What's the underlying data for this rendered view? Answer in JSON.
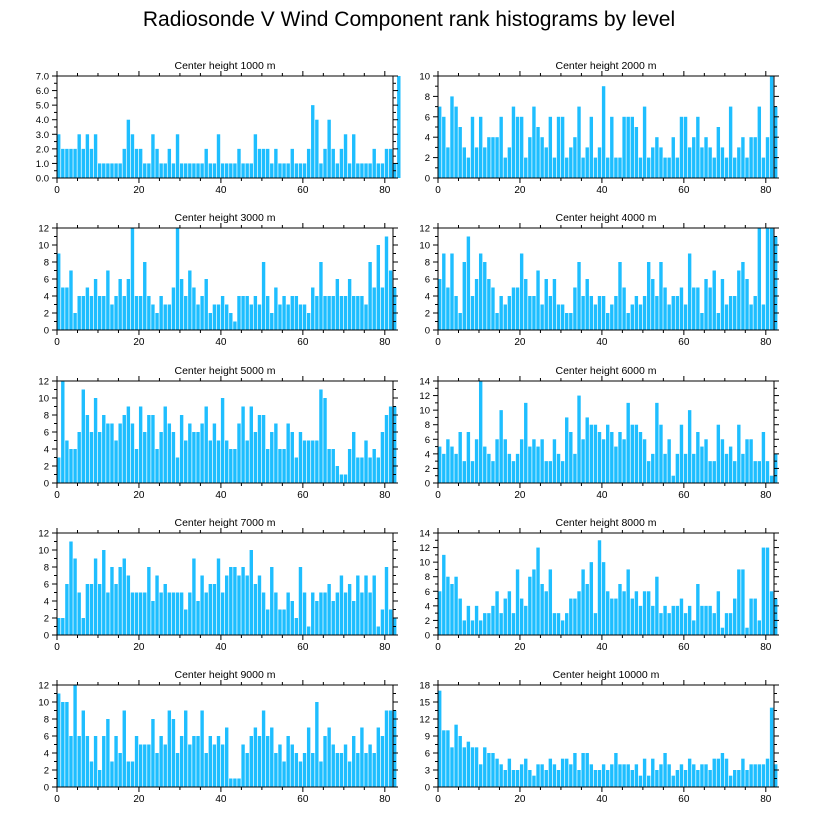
{
  "figure_title": "Radiosonde V Wind Component rank histograms by level",
  "colors": {
    "bar": "#1ebeff",
    "axis": "#000000"
  },
  "chart_data": [
    {
      "type": "bar",
      "title": "Center height 1000 m",
      "xlim": [
        0,
        82
      ],
      "ylim": [
        0,
        7
      ],
      "yticks": [
        0,
        1,
        2,
        3,
        4,
        5,
        6,
        7
      ],
      "ytick_labels": [
        "0.0",
        "1.0",
        "2.0",
        "3.0",
        "4.0",
        "5.0",
        "6.0",
        "7.0"
      ],
      "xticks": [
        0,
        20,
        40,
        60,
        80
      ],
      "xtick_labels": [
        "0",
        "20",
        "40",
        "60",
        "80"
      ],
      "values": [
        3,
        2,
        2,
        2,
        2,
        3,
        2,
        3,
        2,
        3,
        1,
        1,
        1,
        1,
        1,
        1,
        2,
        4,
        3,
        2,
        2,
        1,
        1,
        3,
        2,
        1,
        1,
        2,
        1,
        3,
        1,
        1,
        1,
        1,
        1,
        1,
        2,
        1,
        1,
        3,
        1,
        1,
        1,
        1,
        2,
        1,
        1,
        1,
        3,
        2,
        2,
        2,
        1,
        2,
        1,
        1,
        1,
        2,
        1,
        1,
        1,
        2,
        5,
        4,
        1,
        2,
        4,
        2,
        1,
        2,
        3,
        1,
        3,
        1,
        1,
        1,
        1,
        2,
        1,
        1,
        2,
        2,
        1,
        7
      ]
    },
    {
      "type": "bar",
      "title": "Center height 2000 m",
      "xlim": [
        0,
        82
      ],
      "ylim": [
        0,
        10
      ],
      "yticks": [
        0,
        2,
        4,
        6,
        8,
        10
      ],
      "ytick_labels": [
        "0",
        "2",
        "4",
        "6",
        "8",
        "10"
      ],
      "xticks": [
        0,
        20,
        40,
        60,
        80
      ],
      "xtick_labels": [
        "0",
        "20",
        "40",
        "60",
        "80"
      ],
      "values": [
        7,
        6,
        3,
        8,
        7,
        5,
        3,
        2,
        6,
        3,
        6,
        3,
        4,
        4,
        4,
        6,
        2,
        3,
        7,
        6,
        6,
        2,
        4,
        7,
        5,
        4,
        3,
        6,
        2,
        6,
        6,
        2,
        3,
        4,
        7,
        2,
        3,
        6,
        2,
        3,
        9,
        2,
        6,
        2,
        2,
        6,
        6,
        6,
        5,
        2,
        7,
        2,
        3,
        4,
        3,
        2,
        2,
        4,
        2,
        6,
        6,
        3,
        4,
        6,
        3,
        4,
        3,
        2,
        5,
        3,
        2,
        7,
        2,
        3,
        4,
        2,
        4,
        4,
        7,
        2,
        4,
        10,
        7
      ]
    },
    {
      "type": "bar",
      "title": "Center height 3000 m",
      "xlim": [
        0,
        82
      ],
      "ylim": [
        0,
        12
      ],
      "yticks": [
        0,
        2,
        4,
        6,
        8,
        10,
        12
      ],
      "ytick_labels": [
        "0",
        "2",
        "4",
        "6",
        "8",
        "10",
        "12"
      ],
      "xticks": [
        0,
        20,
        40,
        60,
        80
      ],
      "xtick_labels": [
        "0",
        "20",
        "40",
        "60",
        "80"
      ],
      "values": [
        9,
        5,
        5,
        7,
        2,
        4,
        4,
        5,
        4,
        6,
        4,
        4,
        7,
        3,
        4,
        6,
        4,
        6,
        12,
        4,
        4,
        8,
        4,
        3,
        2,
        4,
        3,
        3,
        5,
        12,
        6,
        4,
        7,
        5,
        3,
        4,
        6,
        2,
        3,
        3,
        4,
        3,
        2,
        1,
        4,
        4,
        4,
        3,
        4,
        3,
        8,
        4,
        2,
        5,
        3,
        4,
        3,
        4,
        4,
        3,
        3,
        2,
        5,
        4,
        8,
        4,
        4,
        4,
        6,
        4,
        4,
        6,
        4,
        4,
        4,
        3,
        8,
        5,
        10,
        5,
        11,
        7,
        5
      ]
    },
    {
      "type": "bar",
      "title": "Center height 4000 m",
      "xlim": [
        0,
        82
      ],
      "ylim": [
        0,
        12
      ],
      "yticks": [
        0,
        2,
        4,
        6,
        8,
        10,
        12
      ],
      "ytick_labels": [
        "0",
        "2",
        "4",
        "6",
        "8",
        "10",
        "12"
      ],
      "xticks": [
        0,
        20,
        40,
        60,
        80
      ],
      "xtick_labels": [
        "0",
        "20",
        "40",
        "60",
        "80"
      ],
      "values": [
        6,
        9,
        5,
        9,
        4,
        2,
        8,
        11,
        4,
        6,
        9,
        8,
        6,
        5,
        2,
        4,
        3,
        4,
        5,
        5,
        9,
        6,
        4,
        4,
        7,
        3,
        6,
        4,
        6,
        3,
        3,
        2,
        2,
        5,
        8,
        4,
        6,
        4,
        3,
        4,
        4,
        2,
        3,
        4,
        8,
        5,
        2,
        3,
        4,
        3,
        4,
        8,
        6,
        4,
        8,
        5,
        3,
        4,
        4,
        5,
        3,
        9,
        5,
        5,
        2,
        6,
        5,
        7,
        2,
        6,
        3,
        4,
        4,
        7,
        8,
        6,
        3,
        4,
        12,
        3,
        12,
        12,
        11
      ]
    },
    {
      "type": "bar",
      "title": "Center height 5000 m",
      "xlim": [
        0,
        82
      ],
      "ylim": [
        0,
        12
      ],
      "yticks": [
        0,
        2,
        4,
        6,
        8,
        10,
        12
      ],
      "ytick_labels": [
        "0",
        "2",
        "4",
        "6",
        "8",
        "10",
        "12"
      ],
      "xticks": [
        0,
        20,
        40,
        60,
        80
      ],
      "xtick_labels": [
        "0",
        "20",
        "40",
        "60",
        "80"
      ],
      "values": [
        3,
        12,
        5,
        4,
        4,
        6,
        11,
        8,
        6,
        10,
        6,
        8,
        7,
        7,
        5,
        7,
        8,
        9,
        7,
        4,
        9,
        6,
        8,
        8,
        4,
        6,
        9,
        7,
        6,
        3,
        8,
        5,
        7,
        6,
        6,
        7,
        9,
        5,
        7,
        5,
        10,
        5,
        4,
        4,
        7,
        9,
        5,
        9,
        6,
        8,
        8,
        4,
        6,
        7,
        4,
        4,
        7,
        6,
        3,
        6,
        5,
        5,
        5,
        5,
        11,
        10,
        4,
        4,
        2,
        1,
        1,
        4,
        6,
        3,
        3,
        5,
        3,
        4,
        3,
        6,
        8,
        9,
        9
      ]
    },
    {
      "type": "bar",
      "title": "Center height 6000 m",
      "xlim": [
        0,
        82
      ],
      "ylim": [
        0,
        14
      ],
      "yticks": [
        0,
        2,
        4,
        6,
        8,
        10,
        12,
        14
      ],
      "ytick_labels": [
        "0",
        "2",
        "4",
        "6",
        "8",
        "10",
        "12",
        "14"
      ],
      "xticks": [
        0,
        20,
        40,
        60,
        80
      ],
      "xtick_labels": [
        "0",
        "20",
        "40",
        "60",
        "80"
      ],
      "values": [
        5,
        4,
        6,
        5,
        4,
        7,
        3,
        7,
        3,
        6,
        14,
        5,
        4,
        3,
        6,
        10,
        6,
        4,
        3,
        4,
        6,
        11,
        5,
        6,
        5,
        6,
        3,
        3,
        6,
        4,
        3,
        9,
        7,
        4,
        12,
        6,
        9,
        8,
        8,
        7,
        6,
        8,
        7,
        5,
        7,
        6,
        11,
        8,
        8,
        7,
        6,
        3,
        4,
        11,
        8,
        4,
        6,
        1,
        4,
        8,
        4,
        10,
        4,
        7,
        5,
        6,
        3,
        3,
        8,
        6,
        4,
        5,
        3,
        8,
        4,
        6,
        6,
        3,
        3,
        7,
        3,
        1,
        4
      ]
    },
    {
      "type": "bar",
      "title": "Center height 7000 m",
      "xlim": [
        0,
        82
      ],
      "ylim": [
        0,
        12
      ],
      "yticks": [
        0,
        2,
        4,
        6,
        8,
        10,
        12
      ],
      "ytick_labels": [
        "0",
        "2",
        "4",
        "6",
        "8",
        "10",
        "12"
      ],
      "xticks": [
        0,
        20,
        40,
        60,
        80
      ],
      "xtick_labels": [
        "0",
        "20",
        "40",
        "60",
        "80"
      ],
      "values": [
        2,
        2,
        6,
        11,
        9,
        5,
        2,
        6,
        6,
        9,
        6,
        10,
        5,
        8,
        6,
        8,
        9,
        7,
        5,
        5,
        5,
        5,
        8,
        4,
        7,
        5,
        6,
        5,
        5,
        5,
        5,
        3,
        5,
        9,
        4,
        7,
        5,
        6,
        6,
        9,
        5,
        7,
        8,
        8,
        7,
        8,
        7,
        10,
        6,
        7,
        5,
        3,
        8,
        5,
        3,
        3,
        5,
        4,
        2,
        8,
        5,
        1,
        5,
        4,
        5,
        5,
        6,
        4,
        5,
        7,
        5,
        6,
        4,
        7,
        5,
        7,
        5,
        7,
        1,
        3,
        8,
        3,
        2
      ]
    },
    {
      "type": "bar",
      "title": "Center height 8000 m",
      "xlim": [
        0,
        82
      ],
      "ylim": [
        0,
        14
      ],
      "yticks": [
        0,
        2,
        4,
        6,
        8,
        10,
        12,
        14
      ],
      "ytick_labels": [
        "0",
        "2",
        "4",
        "6",
        "8",
        "10",
        "12",
        "14"
      ],
      "xticks": [
        0,
        20,
        40,
        60,
        80
      ],
      "xtick_labels": [
        "0",
        "20",
        "40",
        "60",
        "80"
      ],
      "values": [
        6,
        11,
        8,
        7,
        8,
        5,
        2,
        4,
        2,
        4,
        2,
        3,
        3,
        4,
        6,
        3,
        5,
        6,
        3,
        9,
        5,
        4,
        8,
        9,
        12,
        7,
        6,
        9,
        3,
        3,
        2,
        3,
        5,
        5,
        6,
        9,
        7,
        10,
        3,
        13,
        10,
        6,
        5,
        5,
        7,
        6,
        9,
        5,
        6,
        4,
        6,
        6,
        4,
        8,
        3,
        4,
        3,
        4,
        4,
        5,
        3,
        4,
        2,
        7,
        4,
        4,
        4,
        3,
        6,
        1,
        3,
        3,
        5,
        9,
        9,
        1,
        5,
        5,
        2,
        12,
        12,
        6,
        5
      ]
    },
    {
      "type": "bar",
      "title": "Center height 9000 m",
      "xlim": [
        0,
        82
      ],
      "ylim": [
        0,
        12
      ],
      "yticks": [
        0,
        2,
        4,
        6,
        8,
        10,
        12
      ],
      "ytick_labels": [
        "0",
        "2",
        "4",
        "6",
        "8",
        "10",
        "12"
      ],
      "xticks": [
        0,
        20,
        40,
        60,
        80
      ],
      "xtick_labels": [
        "0",
        "20",
        "40",
        "60",
        "80"
      ],
      "values": [
        11,
        10,
        10,
        6,
        12,
        6,
        9,
        6,
        3,
        6,
        2,
        6,
        8,
        3,
        6,
        4,
        9,
        3,
        3,
        6,
        5,
        5,
        5,
        8,
        4,
        6,
        5,
        9,
        8,
        4,
        6,
        9,
        5,
        6,
        6,
        9,
        4,
        6,
        5,
        6,
        5,
        7,
        1,
        1,
        1,
        5,
        4,
        6,
        7,
        6,
        9,
        6,
        7,
        4,
        5,
        3,
        6,
        5,
        4,
        3,
        4,
        7,
        4,
        10,
        3,
        6,
        7,
        5,
        4,
        4,
        5,
        3,
        6,
        4,
        7,
        4,
        5,
        4,
        7,
        6,
        9,
        9,
        9
      ]
    },
    {
      "type": "bar",
      "title": "Center height 10000 m",
      "xlim": [
        0,
        82
      ],
      "ylim": [
        0,
        18
      ],
      "yticks": [
        0,
        3,
        6,
        9,
        12,
        15,
        18
      ],
      "ytick_labels": [
        "0",
        "3",
        "6",
        "9",
        "12",
        "15",
        "18"
      ],
      "xticks": [
        0,
        20,
        40,
        60,
        80
      ],
      "xtick_labels": [
        "0",
        "20",
        "40",
        "60",
        "80"
      ],
      "values": [
        17,
        10,
        10,
        7,
        11,
        9,
        7,
        8,
        7,
        7,
        4,
        7,
        6,
        6,
        5,
        4,
        3,
        5,
        3,
        3,
        4,
        5,
        3,
        2,
        4,
        4,
        3,
        5,
        4,
        3,
        5,
        5,
        4,
        6,
        3,
        6,
        6,
        4,
        3,
        3,
        4,
        3,
        4,
        6,
        4,
        4,
        4,
        3,
        4,
        2,
        5,
        2,
        5,
        3,
        4,
        6,
        4,
        2,
        3,
        4,
        3,
        5,
        4,
        3,
        4,
        4,
        3,
        5,
        5,
        6,
        5,
        2,
        3,
        3,
        5,
        3,
        4,
        4,
        4,
        4,
        5,
        14,
        4
      ]
    }
  ]
}
